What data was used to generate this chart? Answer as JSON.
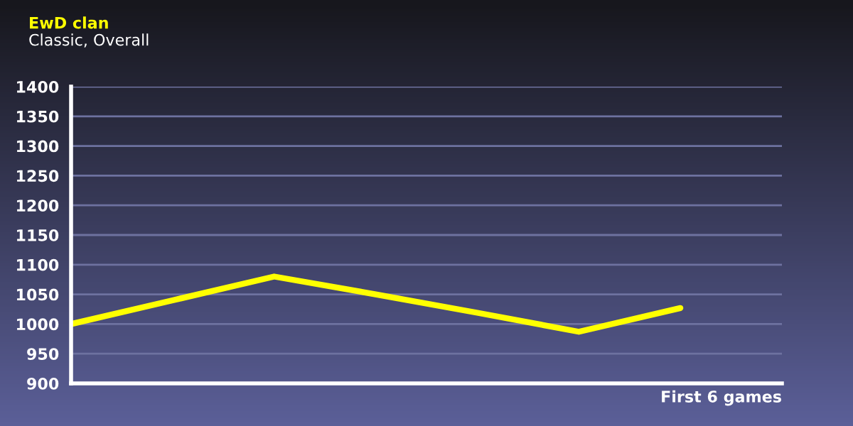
{
  "chart_data": {
    "type": "line",
    "title": "EwD clan",
    "subtitle": "Classic, Overall",
    "xlabel": "First 6 games",
    "categories": [
      null,
      null,
      null,
      null,
      null,
      null,
      null
    ],
    "series": [
      {
        "color": "#ffff00",
        "values": [
          1000,
          1040,
          1080,
          1050,
          1019,
          987,
          1027
        ]
      }
    ],
    "ylim": [
      900,
      1400
    ],
    "yticks": [
      900,
      950,
      1000,
      1050,
      1100,
      1150,
      1200,
      1250,
      1300,
      1350,
      1400
    ],
    "grid": "y",
    "legend": false,
    "marker": "none",
    "line_style": "solid"
  }
}
